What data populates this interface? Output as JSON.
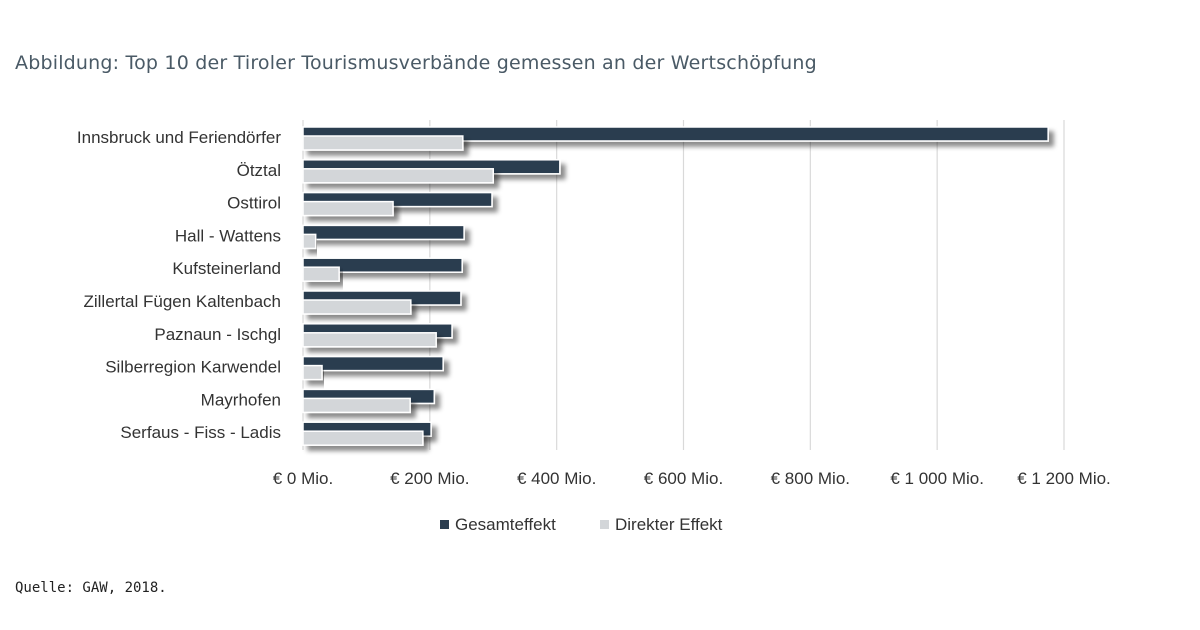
{
  "title": "Abbildung: Top 10 der Tiroler Tourismusverbände gemessen an der Wertschöpfung",
  "source": "Quelle: GAW, 2018.",
  "chart_data": {
    "type": "bar",
    "orientation": "horizontal",
    "categories": [
      "Innsbruck und Feriendörfer",
      "Ötztal",
      "Osttirol",
      "Hall - Wattens",
      "Kufsteinerland",
      "Zillertal Fügen Kaltenbach",
      "Paznaun - Ischgl",
      "Silberregion Karwendel",
      "Mayrhofen",
      "Serfaus - Fiss - Ladis"
    ],
    "series": [
      {
        "name": "Gesamteffekt",
        "color": "#2b3e50",
        "values": [
          1175,
          405,
          298,
          254,
          251,
          249,
          235,
          221,
          207,
          202
        ]
      },
      {
        "name": "Direkter Effekt",
        "color": "#d3d6d9",
        "values": [
          252,
          300,
          142,
          20,
          57,
          170,
          210,
          30,
          169,
          189
        ]
      }
    ],
    "xlim": [
      0,
      1200
    ],
    "xticks": [
      0,
      200,
      400,
      600,
      800,
      1000,
      1200
    ],
    "xtick_labels": [
      "€  0 Mio.",
      "€  200 Mio.",
      "€  400 Mio.",
      "€  600 Mio.",
      "€  800 Mio.",
      "€ 1 000 Mio.",
      "€ 1 200 Mio."
    ],
    "grid": true,
    "legend": "bottom"
  }
}
